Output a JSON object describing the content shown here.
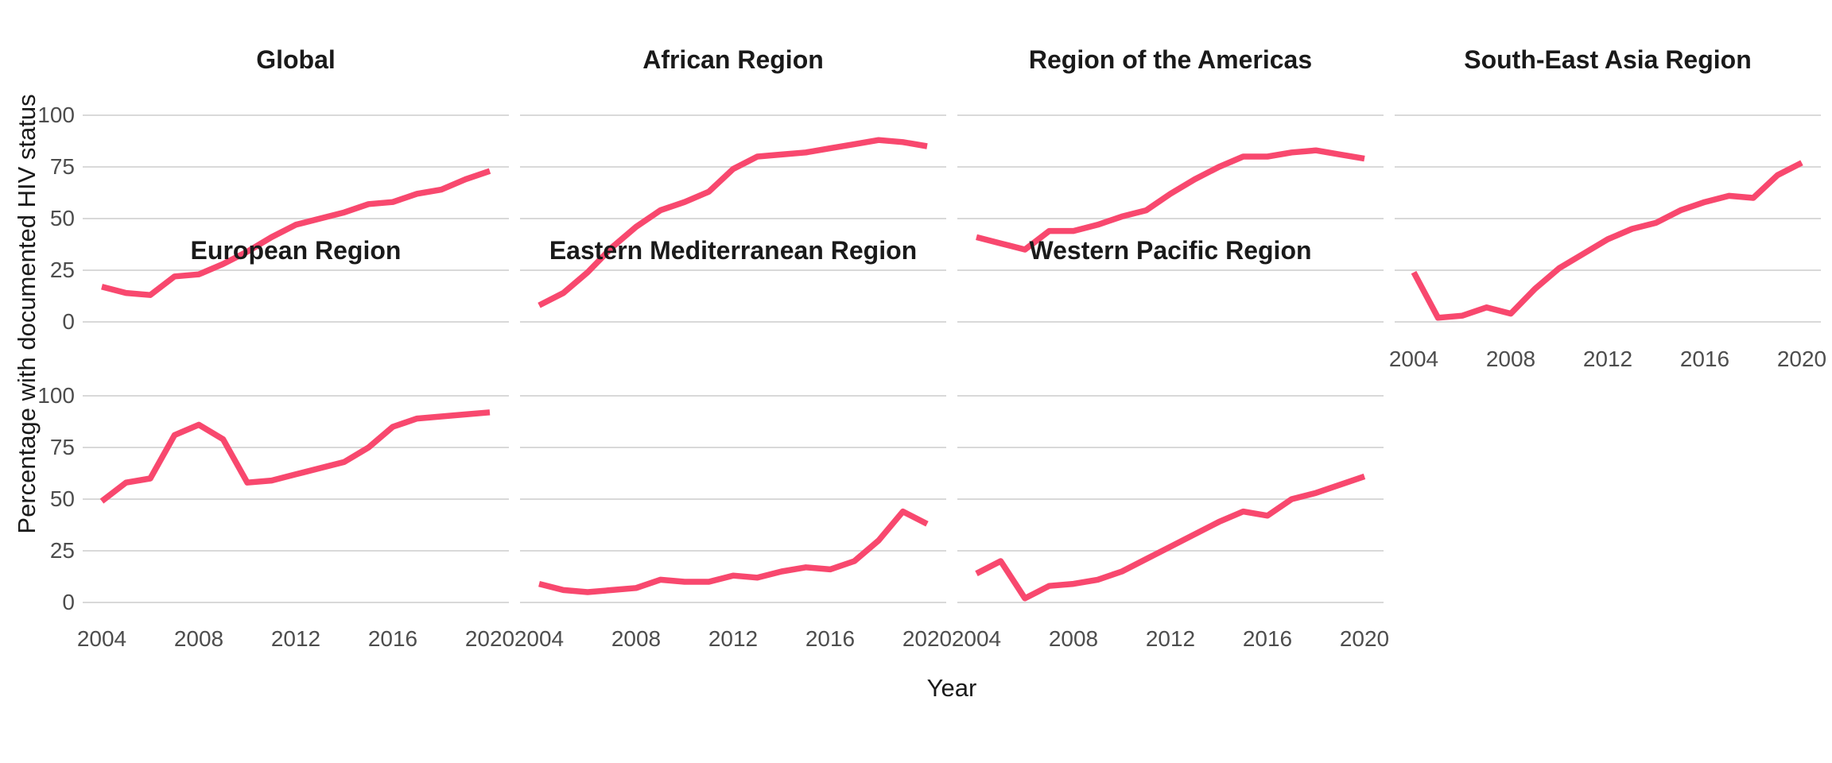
{
  "figure": {
    "background_color": "#ffffff",
    "grid_color": "#d9d9d9",
    "tick_text_color": "#4d4d4d",
    "title_text_color": "#1a1a1a"
  },
  "chart_data": {
    "type": "line",
    "title": "",
    "xlabel": "Year",
    "ylabel": "Percentage with documented HIV status",
    "x": [
      2004,
      2005,
      2006,
      2007,
      2008,
      2009,
      2010,
      2011,
      2012,
      2013,
      2014,
      2015,
      2016,
      2017,
      2018,
      2019,
      2020
    ],
    "x_ticks": [
      "2004",
      "2008",
      "2012",
      "2016",
      "2020"
    ],
    "y_ticks": [
      "100",
      "75",
      "50",
      "25",
      "0"
    ],
    "ylim": [
      0,
      100
    ],
    "grid": "horizontal-only",
    "legend": "none",
    "line_color": "#F8486E",
    "facet_layout": "2 rows x 4 columns; row 1: Global, African Region, Region of the Americas, South-East Asia Region; row 2: European Region, Eastern Mediterranean Region, Western Pacific Region",
    "series": [
      {
        "name": "Global",
        "values": [
          17,
          14,
          13,
          22,
          23,
          28,
          34,
          41,
          47,
          50,
          53,
          57,
          58,
          62,
          64,
          69,
          73
        ]
      },
      {
        "name": "African Region",
        "values": [
          8,
          14,
          24,
          36,
          46,
          54,
          58,
          63,
          74,
          80,
          81,
          82,
          84,
          86,
          88,
          87,
          85
        ]
      },
      {
        "name": "Region of the Americas",
        "values": [
          41,
          38,
          35,
          44,
          44,
          47,
          51,
          54,
          62,
          69,
          75,
          80,
          80,
          82,
          83,
          81,
          79
        ]
      },
      {
        "name": "South-East Asia Region",
        "values": [
          24,
          2,
          3,
          7,
          4,
          16,
          26,
          33,
          40,
          45,
          48,
          54,
          58,
          61,
          60,
          71,
          77
        ]
      },
      {
        "name": "European Region",
        "values": [
          49,
          58,
          60,
          81,
          86,
          79,
          58,
          59,
          62,
          65,
          68,
          75,
          85,
          89,
          90,
          91,
          92
        ]
      },
      {
        "name": "Eastern Mediterranean Region",
        "values": [
          9,
          6,
          5,
          6,
          7,
          11,
          10,
          10,
          13,
          12,
          15,
          17,
          16,
          20,
          30,
          44,
          38
        ]
      },
      {
        "name": "Western Pacific Region",
        "values": [
          14,
          20,
          2,
          8,
          9,
          11,
          15,
          21,
          27,
          33,
          39,
          44,
          42,
          50,
          53,
          57,
          61
        ]
      }
    ]
  }
}
